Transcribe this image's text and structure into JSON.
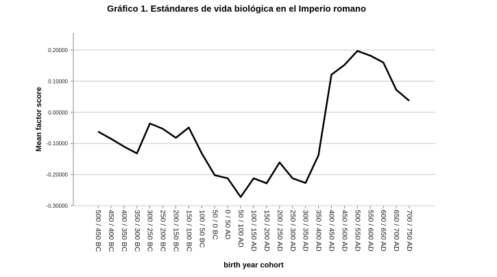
{
  "chart_data": {
    "type": "line",
    "title": "Gráfico 1. Estándares de vida biológica en el Imperio romano",
    "x_label": "birth year cohort",
    "y_label": "Mean factor score",
    "categories": [
      "500 / 450 BC",
      "450 / 400 BC",
      "400 / 350 BC",
      "350 / 300 BC",
      "300 / 250 BC",
      "250 / 200 BC",
      "200 / 150 BC",
      "150 / 100 BC",
      "100 / 50 BC",
      "50 / 0 BC",
      "0 / 50 AD",
      "50 / 100 AD",
      "100 / 150 AD",
      "150 / 200 AD",
      "200 / 250 AD",
      "250 / 300 AD",
      "300 / 350 AD",
      "350 / 400 AD",
      "400 / 450 AD",
      "450 / 500 AD",
      "500 / 550 AD",
      "550 / 600 AD",
      "600 / 650 AD",
      "650 / 700 AD",
      "700 / 750 AD"
    ],
    "values": [
      -0.062,
      -0.085,
      -0.11,
      -0.132,
      -0.036,
      -0.053,
      -0.082,
      -0.049,
      -0.132,
      -0.202,
      -0.212,
      -0.272,
      -0.212,
      -0.228,
      -0.161,
      -0.212,
      -0.227,
      -0.138,
      0.121,
      0.152,
      0.197,
      0.182,
      0.16,
      0.072,
      0.037
    ],
    "color": "#000000",
    "ylim": [
      -0.3,
      0.255
    ],
    "yticks": [
      {
        "value": -0.3,
        "label": "-0.30000"
      },
      {
        "value": -0.2,
        "label": "-0.20000"
      },
      {
        "value": -0.1,
        "label": "-0.10000"
      },
      {
        "value": 0,
        "label": "0.00000"
      },
      {
        "value": 0.1,
        "label": "0.10000"
      },
      {
        "value": 0.2,
        "label": "0.20000"
      }
    ],
    "grid": true
  }
}
